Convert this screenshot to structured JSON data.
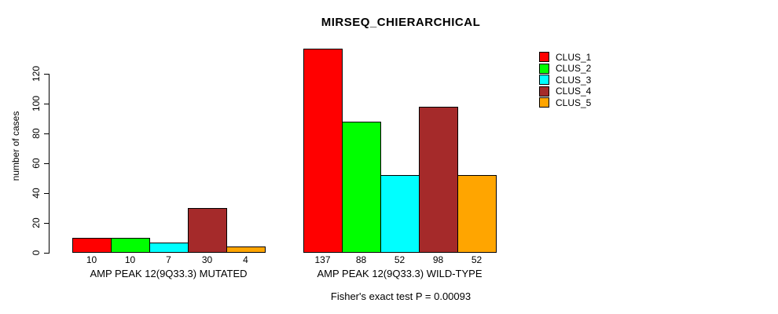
{
  "chart_data": {
    "type": "bar",
    "title": "MIRSEQ_CHIERARCHICAL",
    "ylabel": "number of cases",
    "yticks": [
      0,
      20,
      40,
      60,
      80,
      100,
      120
    ],
    "ylim": [
      0,
      137
    ],
    "grid": false,
    "legend_position": "top-right",
    "clusters": [
      {
        "name": "CLUS_1",
        "color": "#ff0000"
      },
      {
        "name": "CLUS_2",
        "color": "#00ff00"
      },
      {
        "name": "CLUS_3",
        "color": "#00ffff"
      },
      {
        "name": "CLUS_4",
        "color": "#a52a2a"
      },
      {
        "name": "CLUS_5",
        "color": "#ffa500"
      }
    ],
    "groups": [
      {
        "label": "AMP PEAK 12(9Q33.3) MUTATED",
        "values": [
          10,
          10,
          7,
          30,
          4
        ]
      },
      {
        "label": "AMP PEAK 12(9Q33.3) WILD-TYPE",
        "values": [
          137,
          88,
          52,
          98,
          52
        ]
      }
    ],
    "annotation": "Fisher's exact test P = 0.00093"
  }
}
